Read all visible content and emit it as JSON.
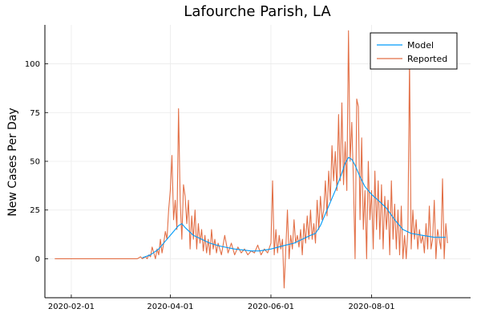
{
  "chart_data": {
    "type": "line",
    "title": "Lafourche Parish, LA",
    "xlabel": "",
    "ylabel": "New Cases Per Day",
    "x_axis_type": "date",
    "xlim": [
      "2020-01-16",
      "2020-09-30"
    ],
    "ylim": [
      -20,
      120
    ],
    "x_ticks": [
      "2020-02-01",
      "2020-04-01",
      "2020-06-01",
      "2020-08-01"
    ],
    "y_ticks": [
      0,
      25,
      50,
      75,
      100
    ],
    "grid": true,
    "legend_position": "top-right",
    "series": [
      {
        "name": "Model",
        "color": "#009af9",
        "points": [
          [
            "2020-03-15",
            0.5
          ],
          [
            "2020-03-20",
            2
          ],
          [
            "2020-03-25",
            5
          ],
          [
            "2020-03-29",
            9
          ],
          [
            "2020-04-02",
            13
          ],
          [
            "2020-04-06",
            17
          ],
          [
            "2020-04-08",
            18
          ],
          [
            "2020-04-10",
            16
          ],
          [
            "2020-04-15",
            12
          ],
          [
            "2020-04-20",
            10
          ],
          [
            "2020-04-25",
            8
          ],
          [
            "2020-05-01",
            6.5
          ],
          [
            "2020-05-10",
            5
          ],
          [
            "2020-05-20",
            4
          ],
          [
            "2020-05-25",
            4
          ],
          [
            "2020-06-01",
            5
          ],
          [
            "2020-06-10",
            7
          ],
          [
            "2020-06-15",
            8
          ],
          [
            "2020-06-20",
            10
          ],
          [
            "2020-06-25",
            12
          ],
          [
            "2020-06-28",
            13
          ],
          [
            "2020-07-01",
            17
          ],
          [
            "2020-07-05",
            25
          ],
          [
            "2020-07-10",
            35
          ],
          [
            "2020-07-14",
            44
          ],
          [
            "2020-07-16",
            49
          ],
          [
            "2020-07-18",
            52
          ],
          [
            "2020-07-20",
            51
          ],
          [
            "2020-07-22",
            48
          ],
          [
            "2020-07-25",
            42
          ],
          [
            "2020-07-28",
            37
          ],
          [
            "2020-08-01",
            33
          ],
          [
            "2020-08-05",
            30
          ],
          [
            "2020-08-10",
            26
          ],
          [
            "2020-08-15",
            20
          ],
          [
            "2020-08-20",
            15
          ],
          [
            "2020-08-25",
            13
          ],
          [
            "2020-09-01",
            12
          ],
          [
            "2020-09-08",
            11
          ],
          [
            "2020-09-15",
            11
          ]
        ]
      },
      {
        "name": "Reported",
        "color": "#e26f46",
        "points": [
          [
            "2020-01-22",
            0
          ],
          [
            "2020-03-12",
            0
          ],
          [
            "2020-03-14",
            1
          ],
          [
            "2020-03-15",
            0
          ],
          [
            "2020-03-17",
            1
          ],
          [
            "2020-03-18",
            0
          ],
          [
            "2020-03-19",
            2
          ],
          [
            "2020-03-20",
            1
          ],
          [
            "2020-03-21",
            6
          ],
          [
            "2020-03-22",
            3
          ],
          [
            "2020-03-23",
            0
          ],
          [
            "2020-03-24",
            5
          ],
          [
            "2020-03-25",
            2
          ],
          [
            "2020-03-26",
            10
          ],
          [
            "2020-03-27",
            3
          ],
          [
            "2020-03-28",
            8
          ],
          [
            "2020-03-29",
            14
          ],
          [
            "2020-03-30",
            10
          ],
          [
            "2020-03-31",
            25
          ],
          [
            "2020-04-01",
            35
          ],
          [
            "2020-04-02",
            53
          ],
          [
            "2020-04-03",
            20
          ],
          [
            "2020-04-04",
            30
          ],
          [
            "2020-04-05",
            15
          ],
          [
            "2020-04-06",
            77
          ],
          [
            "2020-04-07",
            30
          ],
          [
            "2020-04-08",
            10
          ],
          [
            "2020-04-09",
            38
          ],
          [
            "2020-04-10",
            32
          ],
          [
            "2020-04-11",
            18
          ],
          [
            "2020-04-12",
            30
          ],
          [
            "2020-04-13",
            5
          ],
          [
            "2020-04-14",
            22
          ],
          [
            "2020-04-15",
            10
          ],
          [
            "2020-04-16",
            25
          ],
          [
            "2020-04-17",
            5
          ],
          [
            "2020-04-18",
            18
          ],
          [
            "2020-04-19",
            8
          ],
          [
            "2020-04-20",
            15
          ],
          [
            "2020-04-21",
            4
          ],
          [
            "2020-04-22",
            12
          ],
          [
            "2020-04-23",
            3
          ],
          [
            "2020-04-24",
            10
          ],
          [
            "2020-04-25",
            2
          ],
          [
            "2020-04-26",
            15
          ],
          [
            "2020-04-27",
            5
          ],
          [
            "2020-04-28",
            10
          ],
          [
            "2020-04-29",
            3
          ],
          [
            "2020-04-30",
            8
          ],
          [
            "2020-05-02",
            2
          ],
          [
            "2020-05-04",
            12
          ],
          [
            "2020-05-06",
            3
          ],
          [
            "2020-05-08",
            8
          ],
          [
            "2020-05-10",
            2
          ],
          [
            "2020-05-12",
            6
          ],
          [
            "2020-05-14",
            3
          ],
          [
            "2020-05-16",
            5
          ],
          [
            "2020-05-18",
            2
          ],
          [
            "2020-05-20",
            4
          ],
          [
            "2020-05-22",
            3
          ],
          [
            "2020-05-24",
            7
          ],
          [
            "2020-05-26",
            2
          ],
          [
            "2020-05-28",
            5
          ],
          [
            "2020-05-30",
            3
          ],
          [
            "2020-06-01",
            8
          ],
          [
            "2020-06-02",
            40
          ],
          [
            "2020-06-03",
            2
          ],
          [
            "2020-06-04",
            15
          ],
          [
            "2020-06-05",
            3
          ],
          [
            "2020-06-06",
            12
          ],
          [
            "2020-06-07",
            5
          ],
          [
            "2020-06-08",
            10
          ],
          [
            "2020-06-09",
            -15
          ],
          [
            "2020-06-10",
            5
          ],
          [
            "2020-06-11",
            25
          ],
          [
            "2020-06-12",
            0
          ],
          [
            "2020-06-13",
            12
          ],
          [
            "2020-06-14",
            5
          ],
          [
            "2020-06-15",
            20
          ],
          [
            "2020-06-16",
            8
          ],
          [
            "2020-06-17",
            12
          ],
          [
            "2020-06-18",
            6
          ],
          [
            "2020-06-19",
            15
          ],
          [
            "2020-06-20",
            2
          ],
          [
            "2020-06-21",
            18
          ],
          [
            "2020-06-22",
            8
          ],
          [
            "2020-06-23",
            22
          ],
          [
            "2020-06-24",
            10
          ],
          [
            "2020-06-25",
            25
          ],
          [
            "2020-06-26",
            10
          ],
          [
            "2020-06-27",
            18
          ],
          [
            "2020-06-28",
            8
          ],
          [
            "2020-06-29",
            30
          ],
          [
            "2020-06-30",
            15
          ],
          [
            "2020-07-01",
            32
          ],
          [
            "2020-07-02",
            20
          ],
          [
            "2020-07-03",
            25
          ],
          [
            "2020-07-04",
            40
          ],
          [
            "2020-07-05",
            22
          ],
          [
            "2020-07-06",
            45
          ],
          [
            "2020-07-07",
            30
          ],
          [
            "2020-07-08",
            58
          ],
          [
            "2020-07-09",
            40
          ],
          [
            "2020-07-10",
            55
          ],
          [
            "2020-07-11",
            35
          ],
          [
            "2020-07-12",
            74
          ],
          [
            "2020-07-13",
            40
          ],
          [
            "2020-07-14",
            80
          ],
          [
            "2020-07-15",
            38
          ],
          [
            "2020-07-16",
            60
          ],
          [
            "2020-07-17",
            35
          ],
          [
            "2020-07-18",
            117
          ],
          [
            "2020-07-19",
            50
          ],
          [
            "2020-07-20",
            70
          ],
          [
            "2020-07-21",
            40
          ],
          [
            "2020-07-22",
            0
          ],
          [
            "2020-07-23",
            82
          ],
          [
            "2020-07-24",
            78
          ],
          [
            "2020-07-25",
            20
          ],
          [
            "2020-07-26",
            62
          ],
          [
            "2020-07-27",
            15
          ],
          [
            "2020-07-28",
            35
          ],
          [
            "2020-07-29",
            0
          ],
          [
            "2020-07-30",
            50
          ],
          [
            "2020-07-31",
            20
          ],
          [
            "2020-08-01",
            35
          ],
          [
            "2020-08-02",
            5
          ],
          [
            "2020-08-03",
            45
          ],
          [
            "2020-08-04",
            15
          ],
          [
            "2020-08-05",
            40
          ],
          [
            "2020-08-06",
            10
          ],
          [
            "2020-08-07",
            38
          ],
          [
            "2020-08-08",
            5
          ],
          [
            "2020-08-09",
            32
          ],
          [
            "2020-08-10",
            15
          ],
          [
            "2020-08-11",
            30
          ],
          [
            "2020-08-12",
            2
          ],
          [
            "2020-08-13",
            40
          ],
          [
            "2020-08-14",
            10
          ],
          [
            "2020-08-15",
            28
          ],
          [
            "2020-08-16",
            5
          ],
          [
            "2020-08-17",
            25
          ],
          [
            "2020-08-18",
            2
          ],
          [
            "2020-08-19",
            27
          ],
          [
            "2020-08-20",
            0
          ],
          [
            "2020-08-21",
            12
          ],
          [
            "2020-08-22",
            0
          ],
          [
            "2020-08-23",
            15
          ],
          [
            "2020-08-24",
            102
          ],
          [
            "2020-08-25",
            5
          ],
          [
            "2020-08-26",
            25
          ],
          [
            "2020-08-27",
            10
          ],
          [
            "2020-08-28",
            20
          ],
          [
            "2020-08-29",
            5
          ],
          [
            "2020-08-30",
            15
          ],
          [
            "2020-08-31",
            8
          ],
          [
            "2020-09-01",
            12
          ],
          [
            "2020-09-02",
            3
          ],
          [
            "2020-09-03",
            18
          ],
          [
            "2020-09-04",
            5
          ],
          [
            "2020-09-05",
            27
          ],
          [
            "2020-09-06",
            5
          ],
          [
            "2020-09-07",
            10
          ],
          [
            "2020-09-08",
            30
          ],
          [
            "2020-09-09",
            0
          ],
          [
            "2020-09-10",
            15
          ],
          [
            "2020-09-11",
            10
          ],
          [
            "2020-09-12",
            5
          ],
          [
            "2020-09-13",
            41
          ],
          [
            "2020-09-14",
            0
          ],
          [
            "2020-09-15",
            18
          ],
          [
            "2020-09-16",
            8
          ]
        ]
      }
    ]
  }
}
